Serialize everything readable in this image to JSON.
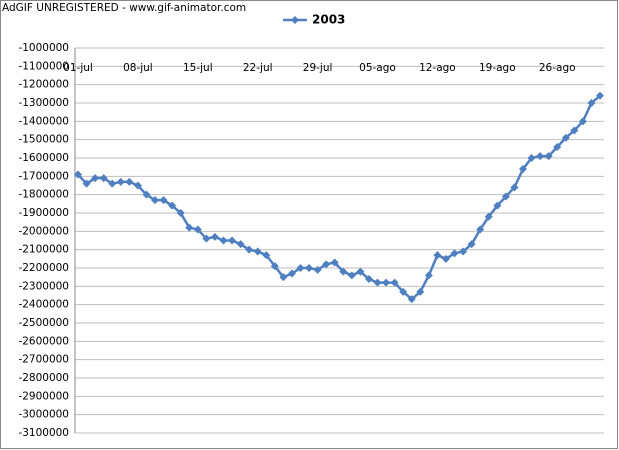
{
  "watermark": "AdGIF UNREGISTERED - www.gif-animator.com",
  "chart_data": {
    "type": "line",
    "categories": [
      "01-jul",
      null,
      null,
      null,
      null,
      null,
      null,
      "08-jul",
      null,
      null,
      null,
      null,
      null,
      null,
      "15-jul",
      null,
      null,
      null,
      null,
      null,
      null,
      "22-jul",
      null,
      null,
      null,
      null,
      null,
      null,
      "29-jul",
      null,
      null,
      null,
      null,
      null,
      null,
      "05-ago",
      null,
      null,
      null,
      null,
      null,
      null,
      "12-ago",
      null,
      null,
      null,
      null,
      null,
      null,
      "19-ago",
      null,
      null,
      null,
      null,
      null,
      null,
      "26-ago",
      null,
      null,
      null,
      null,
      null
    ],
    "series": [
      {
        "name": "2003",
        "color": "#4f7fc0",
        "values": [
          -1690000,
          -1740000,
          -1710000,
          -1710000,
          -1740000,
          -1730000,
          -1730000,
          -1750000,
          -1800000,
          -1830000,
          -1830000,
          -1860000,
          -1900000,
          -1980000,
          -1990000,
          -2040000,
          -2030000,
          -2050000,
          -2050000,
          -2070000,
          -2100000,
          -2110000,
          -2130000,
          -2190000,
          -2250000,
          -2230000,
          -2200000,
          -2200000,
          -2210000,
          -2180000,
          -2170000,
          -2220000,
          -2240000,
          -2220000,
          -2260000,
          -2280000,
          -2280000,
          -2280000,
          -2330000,
          -2370000,
          -2330000,
          -2240000,
          -2130000,
          -2150000,
          -2120000,
          -2110000,
          -2070000,
          -1990000,
          -1920000,
          -1860000,
          -1810000,
          -1760000,
          -1660000,
          -1600000,
          -1590000,
          -1590000,
          -1540000,
          -1490000,
          -1450000,
          -1400000,
          -1300000,
          -1260000
        ]
      }
    ],
    "ylim": [
      -3100000,
      -1000000
    ],
    "yticks": [
      -1000000,
      -1100000,
      -1200000,
      -1300000,
      -1400000,
      -1500000,
      -1600000,
      -1700000,
      -1800000,
      -1900000,
      -2000000,
      -2100000,
      -2200000,
      -2300000,
      -2400000,
      -2500000,
      -2600000,
      -2700000,
      -2800000,
      -2900000,
      -3000000,
      -3100000
    ],
    "grid": true,
    "legend": "top"
  }
}
